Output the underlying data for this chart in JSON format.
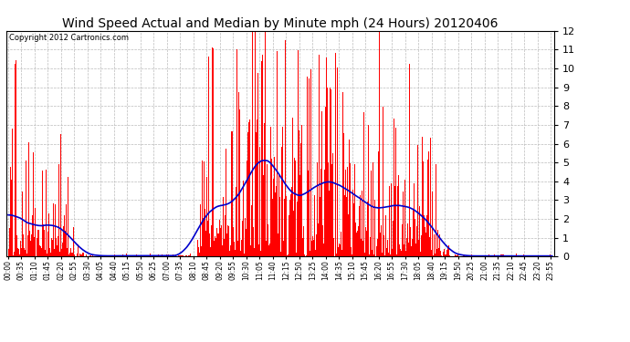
{
  "title": "Wind Speed Actual and Median by Minute mph (24 Hours) 20120406",
  "copyright": "Copyright 2012 Cartronics.com",
  "ylim": [
    0.0,
    12.0
  ],
  "yticks": [
    0.0,
    1.0,
    2.0,
    3.0,
    4.0,
    5.0,
    6.0,
    7.0,
    8.0,
    9.0,
    10.0,
    11.0,
    12.0
  ],
  "bar_color": "#ff0000",
  "line_color": "#0000cc",
  "bg_color": "#ffffff",
  "title_fontsize": 10,
  "copyright_fontsize": 6,
  "tick_fontsize": 5.5,
  "grid_color": "#bbbbbb",
  "x_tick_interval": 35
}
